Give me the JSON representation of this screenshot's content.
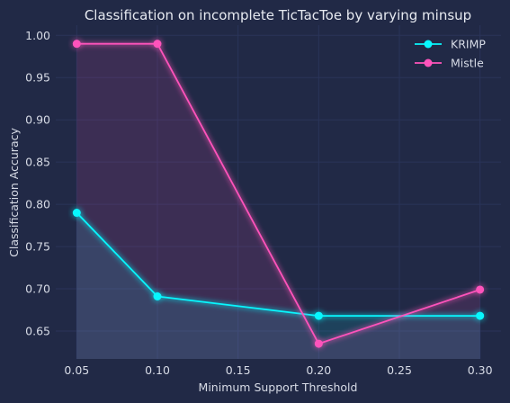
{
  "chart_data": {
    "type": "line",
    "title": "Classification on incomplete TicTacToe by varying minsup",
    "xlabel": "Minimum Support Threshold",
    "ylabel": "Classification Accuracy",
    "xlim": [
      0.037,
      0.313
    ],
    "ylim": [
      0.617,
      1.012
    ],
    "xticks": [
      "0.05",
      "0.10",
      "0.15",
      "0.20",
      "0.25",
      "0.30"
    ],
    "yticks": [
      "0.65",
      "0.70",
      "0.75",
      "0.80",
      "0.85",
      "0.90",
      "0.95",
      "1.00"
    ],
    "grid": true,
    "legend_position": "top-right",
    "x": [
      0.05,
      0.1,
      0.2,
      0.3
    ],
    "series": [
      {
        "name": "KRIMP",
        "values": [
          0.79,
          0.691,
          0.668,
          0.668
        ],
        "color": "#08F7FE"
      },
      {
        "name": "Mistle",
        "values": [
          0.99,
          0.99,
          0.635,
          0.699
        ],
        "color": "#FE53BB"
      }
    ]
  }
}
